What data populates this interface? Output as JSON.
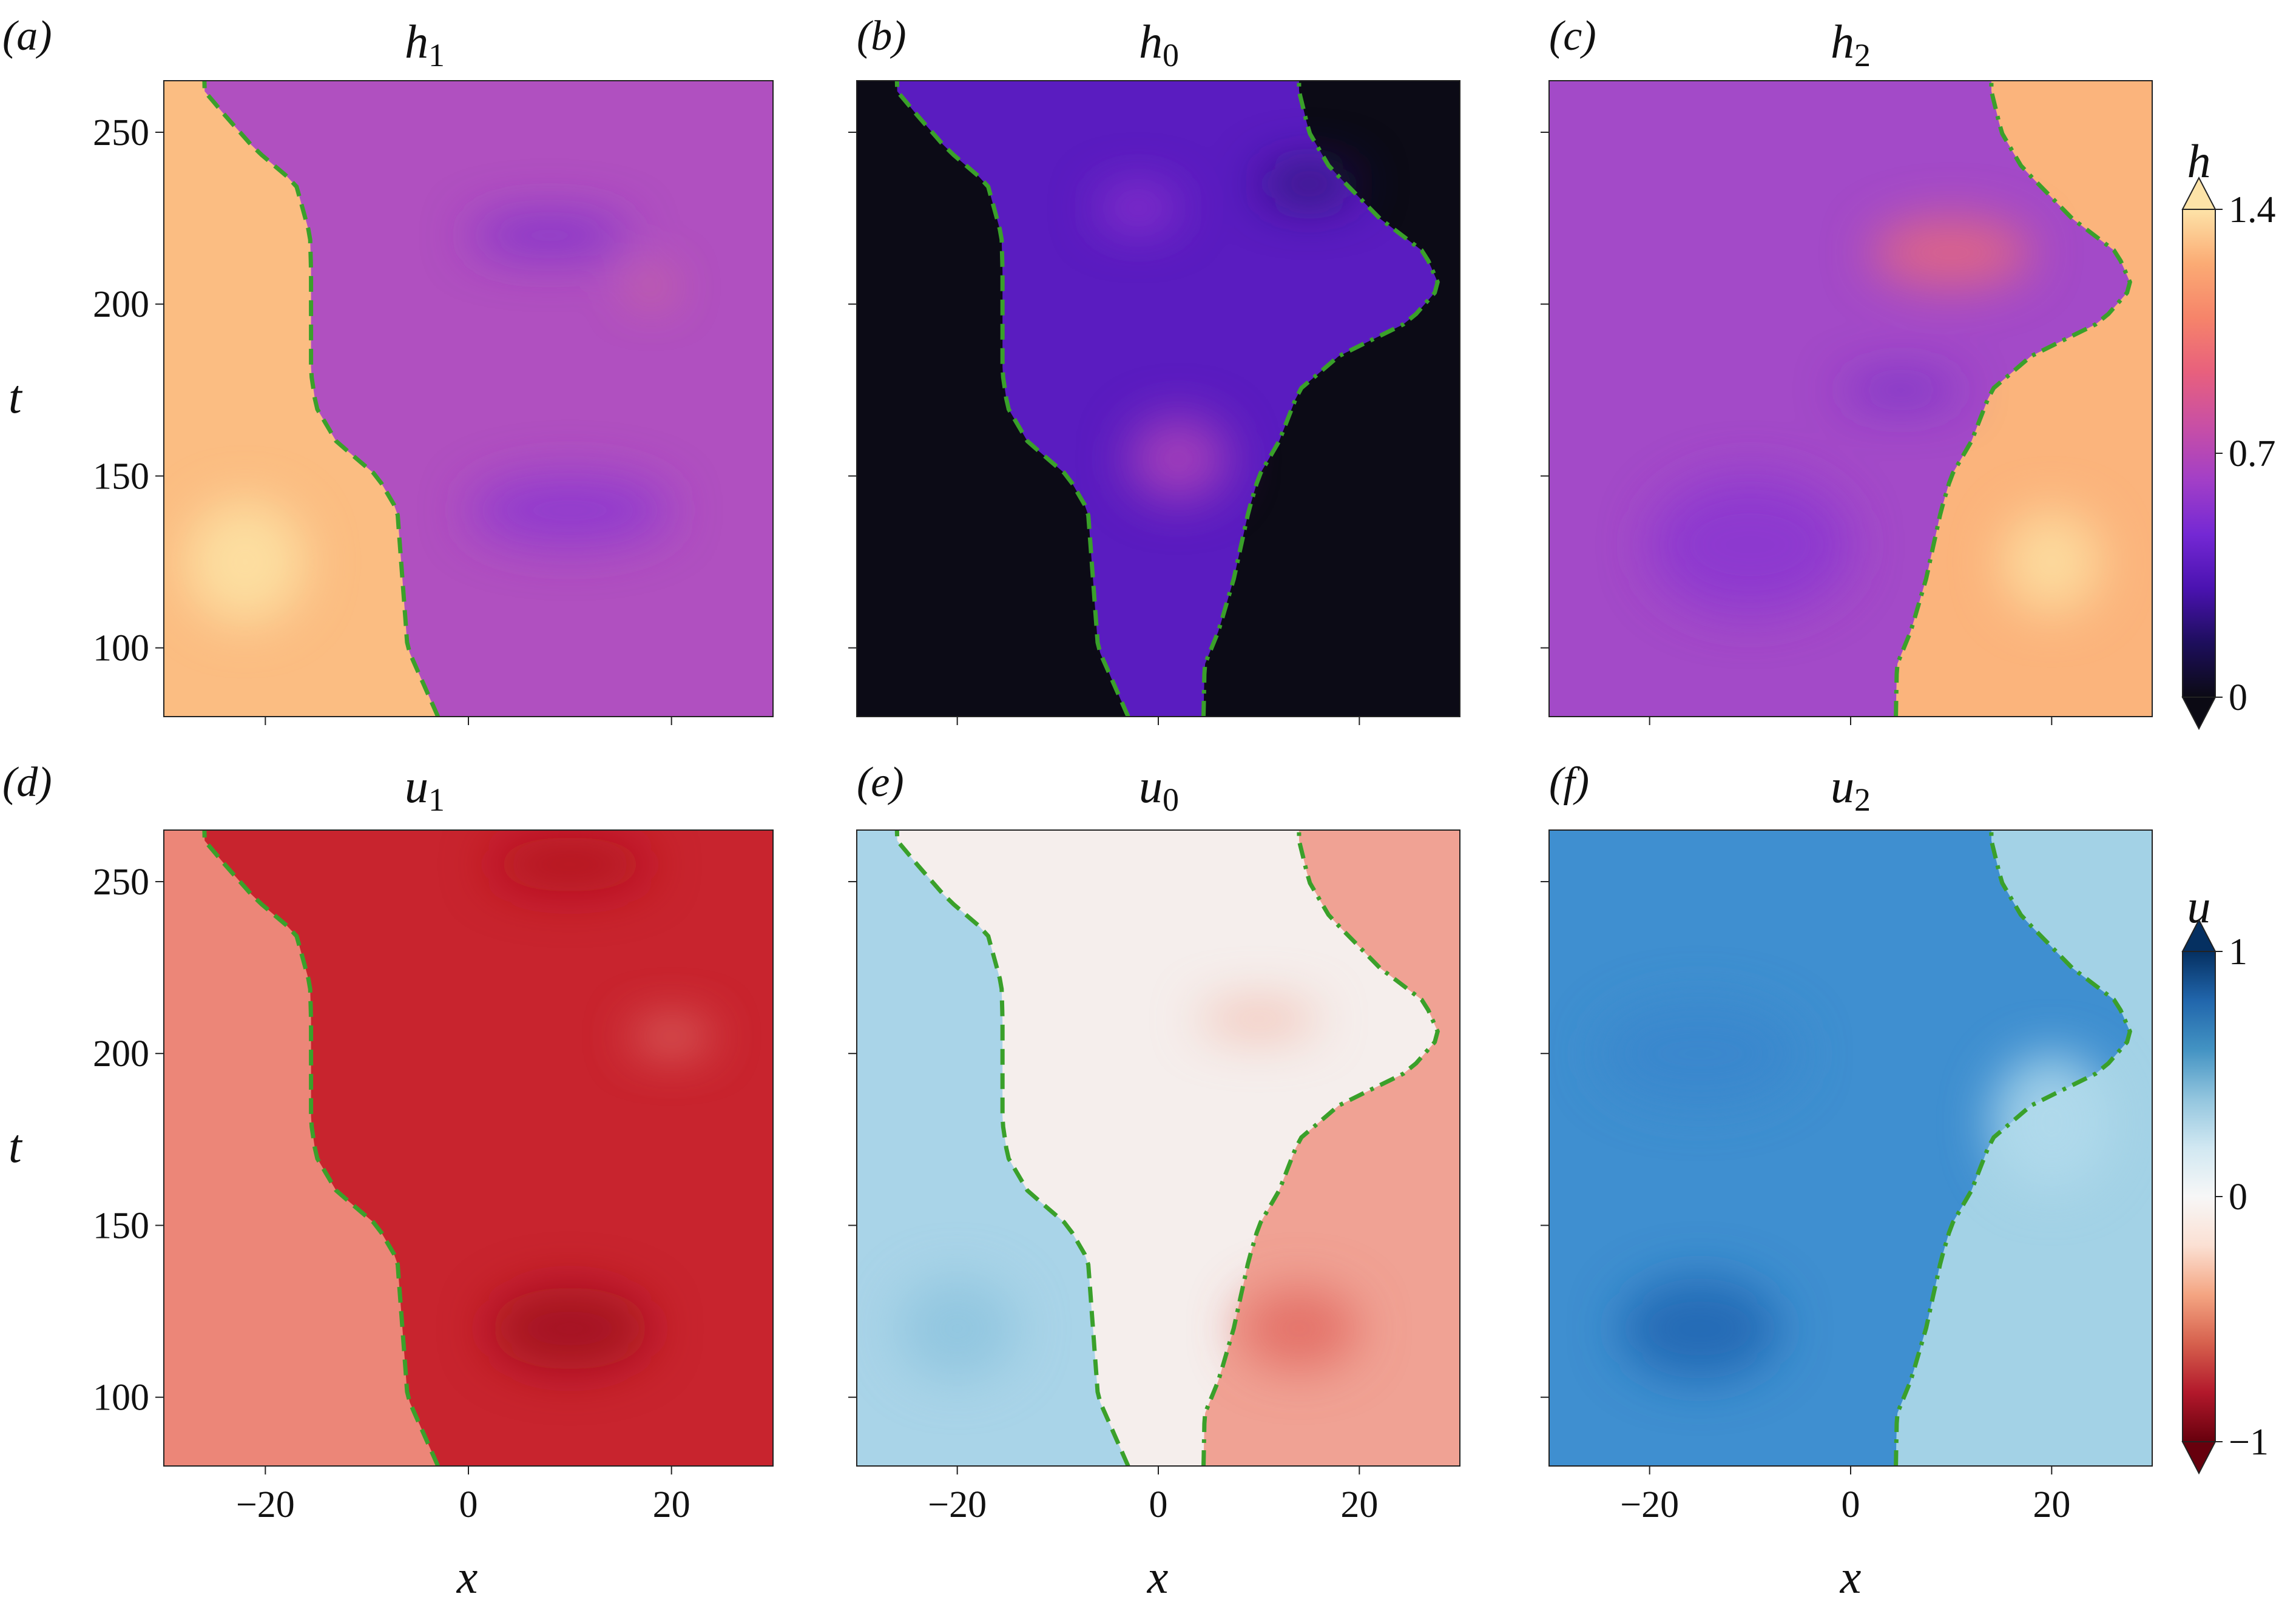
{
  "figure": {
    "x_tick_labels": [
      "−20",
      "0",
      "20"
    ],
    "x_ticks": [
      -20,
      0,
      20
    ],
    "t_tick_labels": [
      "100",
      "150",
      "200",
      "250"
    ],
    "t_ticks": [
      100,
      150,
      200,
      250
    ],
    "xlabel": "x",
    "tlabel": "t",
    "colorbars": [
      {
        "id": "h",
        "label": "h",
        "tick_labels": [
          "1.4",
          "0.7",
          "0"
        ],
        "ticks": [
          1.4,
          0.7,
          0
        ],
        "range": [
          0,
          1.4
        ],
        "colors": [
          "#0b0a14",
          "#1d0e5c",
          "#4a12b0",
          "#7428d4",
          "#a23fc7",
          "#c84fa5",
          "#e8607d",
          "#f6846a",
          "#fbab74",
          "#fde3a8"
        ]
      },
      {
        "id": "u",
        "label": "u",
        "tick_labels": [
          "1",
          "0",
          "−1"
        ],
        "ticks": [
          1,
          0,
          -1
        ],
        "range": [
          -1,
          1
        ],
        "colors": [
          "#67000d",
          "#b2182b",
          "#d6604d",
          "#f4a582",
          "#fbe0d3",
          "#f7f7f7",
          "#d1e8f2",
          "#92c5de",
          "#4393c3",
          "#2166ac",
          "#053061"
        ]
      }
    ]
  },
  "panels": [
    {
      "label": "(a)",
      "title_main": "h",
      "title_sub": "1"
    },
    {
      "label": "(b)",
      "title_main": "h",
      "title_sub": "0"
    },
    {
      "label": "(c)",
      "title_main": "h",
      "title_sub": "2"
    },
    {
      "label": "(d)",
      "title_main": "u",
      "title_sub": "1"
    },
    {
      "label": "(e)",
      "title_main": "u",
      "title_sub": "0"
    },
    {
      "label": "(f)",
      "title_main": "u",
      "title_sub": "2"
    }
  ],
  "chart_data": [
    {
      "type": "heatmap",
      "title": "h₁",
      "xlabel": "",
      "ylabel": "t",
      "xlim": [
        -30,
        30
      ],
      "ylim": [
        80,
        265
      ],
      "base_color": "#b050c0",
      "left_region_color": "#fbbd82",
      "lines": [
        "dashed"
      ],
      "features": [
        {
          "x": -22,
          "t": 125,
          "sx": 6,
          "st": 18,
          "color": "#fde4a6"
        },
        {
          "x": 8,
          "t": 220,
          "sx": 8,
          "st": 6,
          "color": "#7a30cc"
        },
        {
          "x": 10,
          "t": 140,
          "sx": 10,
          "st": 10,
          "color": "#8a35d0"
        },
        {
          "x": 18,
          "t": 205,
          "sx": 2,
          "st": 3,
          "color": "#f08a6a"
        }
      ]
    },
    {
      "type": "heatmap",
      "title": "h₀",
      "xlabel": "",
      "ylabel": "",
      "xlim": [
        -30,
        30
      ],
      "ylim": [
        80,
        265
      ],
      "base_color": "#0c0b16",
      "band_color": "#5a1cc0",
      "lines": [
        "dashed",
        "dashdot"
      ],
      "features": [
        {
          "x": -2,
          "t": 228,
          "sx": 4,
          "st": 6,
          "color": "#9a3ad0"
        },
        {
          "x": 2,
          "t": 155,
          "sx": 5,
          "st": 12,
          "color": "#b044b8"
        },
        {
          "x": 15,
          "t": 235,
          "sx": 5,
          "st": 6,
          "color": "#2a1470"
        }
      ]
    },
    {
      "type": "heatmap",
      "title": "h₂",
      "xlabel": "",
      "ylabel": "",
      "xlim": [
        -30,
        30
      ],
      "ylim": [
        80,
        265
      ],
      "base_color": "#a34ac8",
      "right_region_color": "#fbb47c",
      "lines": [
        "dashdot"
      ],
      "features": [
        {
          "x": 20,
          "t": 125,
          "sx": 5,
          "st": 15,
          "color": "#fde0a2"
        },
        {
          "x": 5,
          "t": 175,
          "sx": 6,
          "st": 4,
          "color": "#6a28c8"
        },
        {
          "x": 10,
          "t": 215,
          "sx": 8,
          "st": 10,
          "color": "#e86a7c"
        },
        {
          "x": -10,
          "t": 130,
          "sx": 10,
          "st": 20,
          "color": "#8a36d0"
        }
      ]
    },
    {
      "type": "heatmap",
      "title": "u₁",
      "xlabel": "x",
      "ylabel": "t",
      "xlim": [
        -30,
        30
      ],
      "ylim": [
        80,
        265
      ],
      "base_color": "#c8242e",
      "left_region_color": "#ec8678",
      "lines": [
        "dashed"
      ],
      "features": [
        {
          "x": 10,
          "t": 120,
          "sx": 8,
          "st": 12,
          "color": "#9e0d1f"
        },
        {
          "x": 20,
          "t": 205,
          "sx": 4,
          "st": 4,
          "color": "#e88a80"
        },
        {
          "x": 10,
          "t": 255,
          "sx": 8,
          "st": 8,
          "color": "#b0121f"
        }
      ]
    },
    {
      "type": "heatmap",
      "title": "u₀",
      "xlabel": "x",
      "ylabel": "",
      "xlim": [
        -30,
        30
      ],
      "ylim": [
        80,
        265
      ],
      "base_color": "#f5eeec",
      "left_region_color": "#a9d4e8",
      "right_region_color": "#f0a294",
      "lines": [
        "dashed",
        "dashdot"
      ],
      "features": [
        {
          "x": 14,
          "t": 120,
          "sx": 6,
          "st": 12,
          "color": "#e26a62"
        },
        {
          "x": 10,
          "t": 210,
          "sx": 6,
          "st": 5,
          "color": "#f2b7a8"
        },
        {
          "x": -20,
          "t": 120,
          "sx": 6,
          "st": 15,
          "color": "#8ec4de"
        }
      ]
    },
    {
      "type": "heatmap",
      "title": "u₂",
      "xlabel": "x",
      "ylabel": "",
      "xlim": [
        -30,
        30
      ],
      "ylim": [
        80,
        265
      ],
      "base_color": "#3f8fd0",
      "right_region_color": "#a3d2e6",
      "lines": [
        "dashdot"
      ],
      "features": [
        {
          "x": -15,
          "t": 120,
          "sx": 8,
          "st": 15,
          "color": "#1f64b0"
        },
        {
          "x": -15,
          "t": 200,
          "sx": 10,
          "st": 15,
          "color": "#3a86cc"
        },
        {
          "x": 20,
          "t": 180,
          "sx": 6,
          "st": 20,
          "color": "#b2dbec"
        }
      ]
    }
  ],
  "boundary_curves": {
    "color": "#3aa02a",
    "left_dashed": {
      "t": [
        80,
        100,
        120,
        140,
        150,
        160,
        170,
        180,
        190,
        200,
        210,
        220,
        235,
        245,
        255,
        262
      ],
      "x": [
        -3,
        -6,
        -6.5,
        -7,
        -9,
        -13,
        -15,
        -15.5,
        -15.5,
        -15.5,
        -15.5,
        -15.6,
        -17,
        -21,
        -24,
        -26
      ]
    },
    "right_dashdot": {
      "t": [
        80,
        95,
        105,
        120,
        140,
        150,
        160,
        175,
        185,
        195,
        205,
        215,
        225,
        240,
        250,
        262
      ],
      "x": [
        4.5,
        4.6,
        6,
        7.5,
        9,
        10,
        12,
        14,
        18,
        25,
        28,
        26.5,
        22,
        17,
        15,
        14
      ]
    }
  }
}
